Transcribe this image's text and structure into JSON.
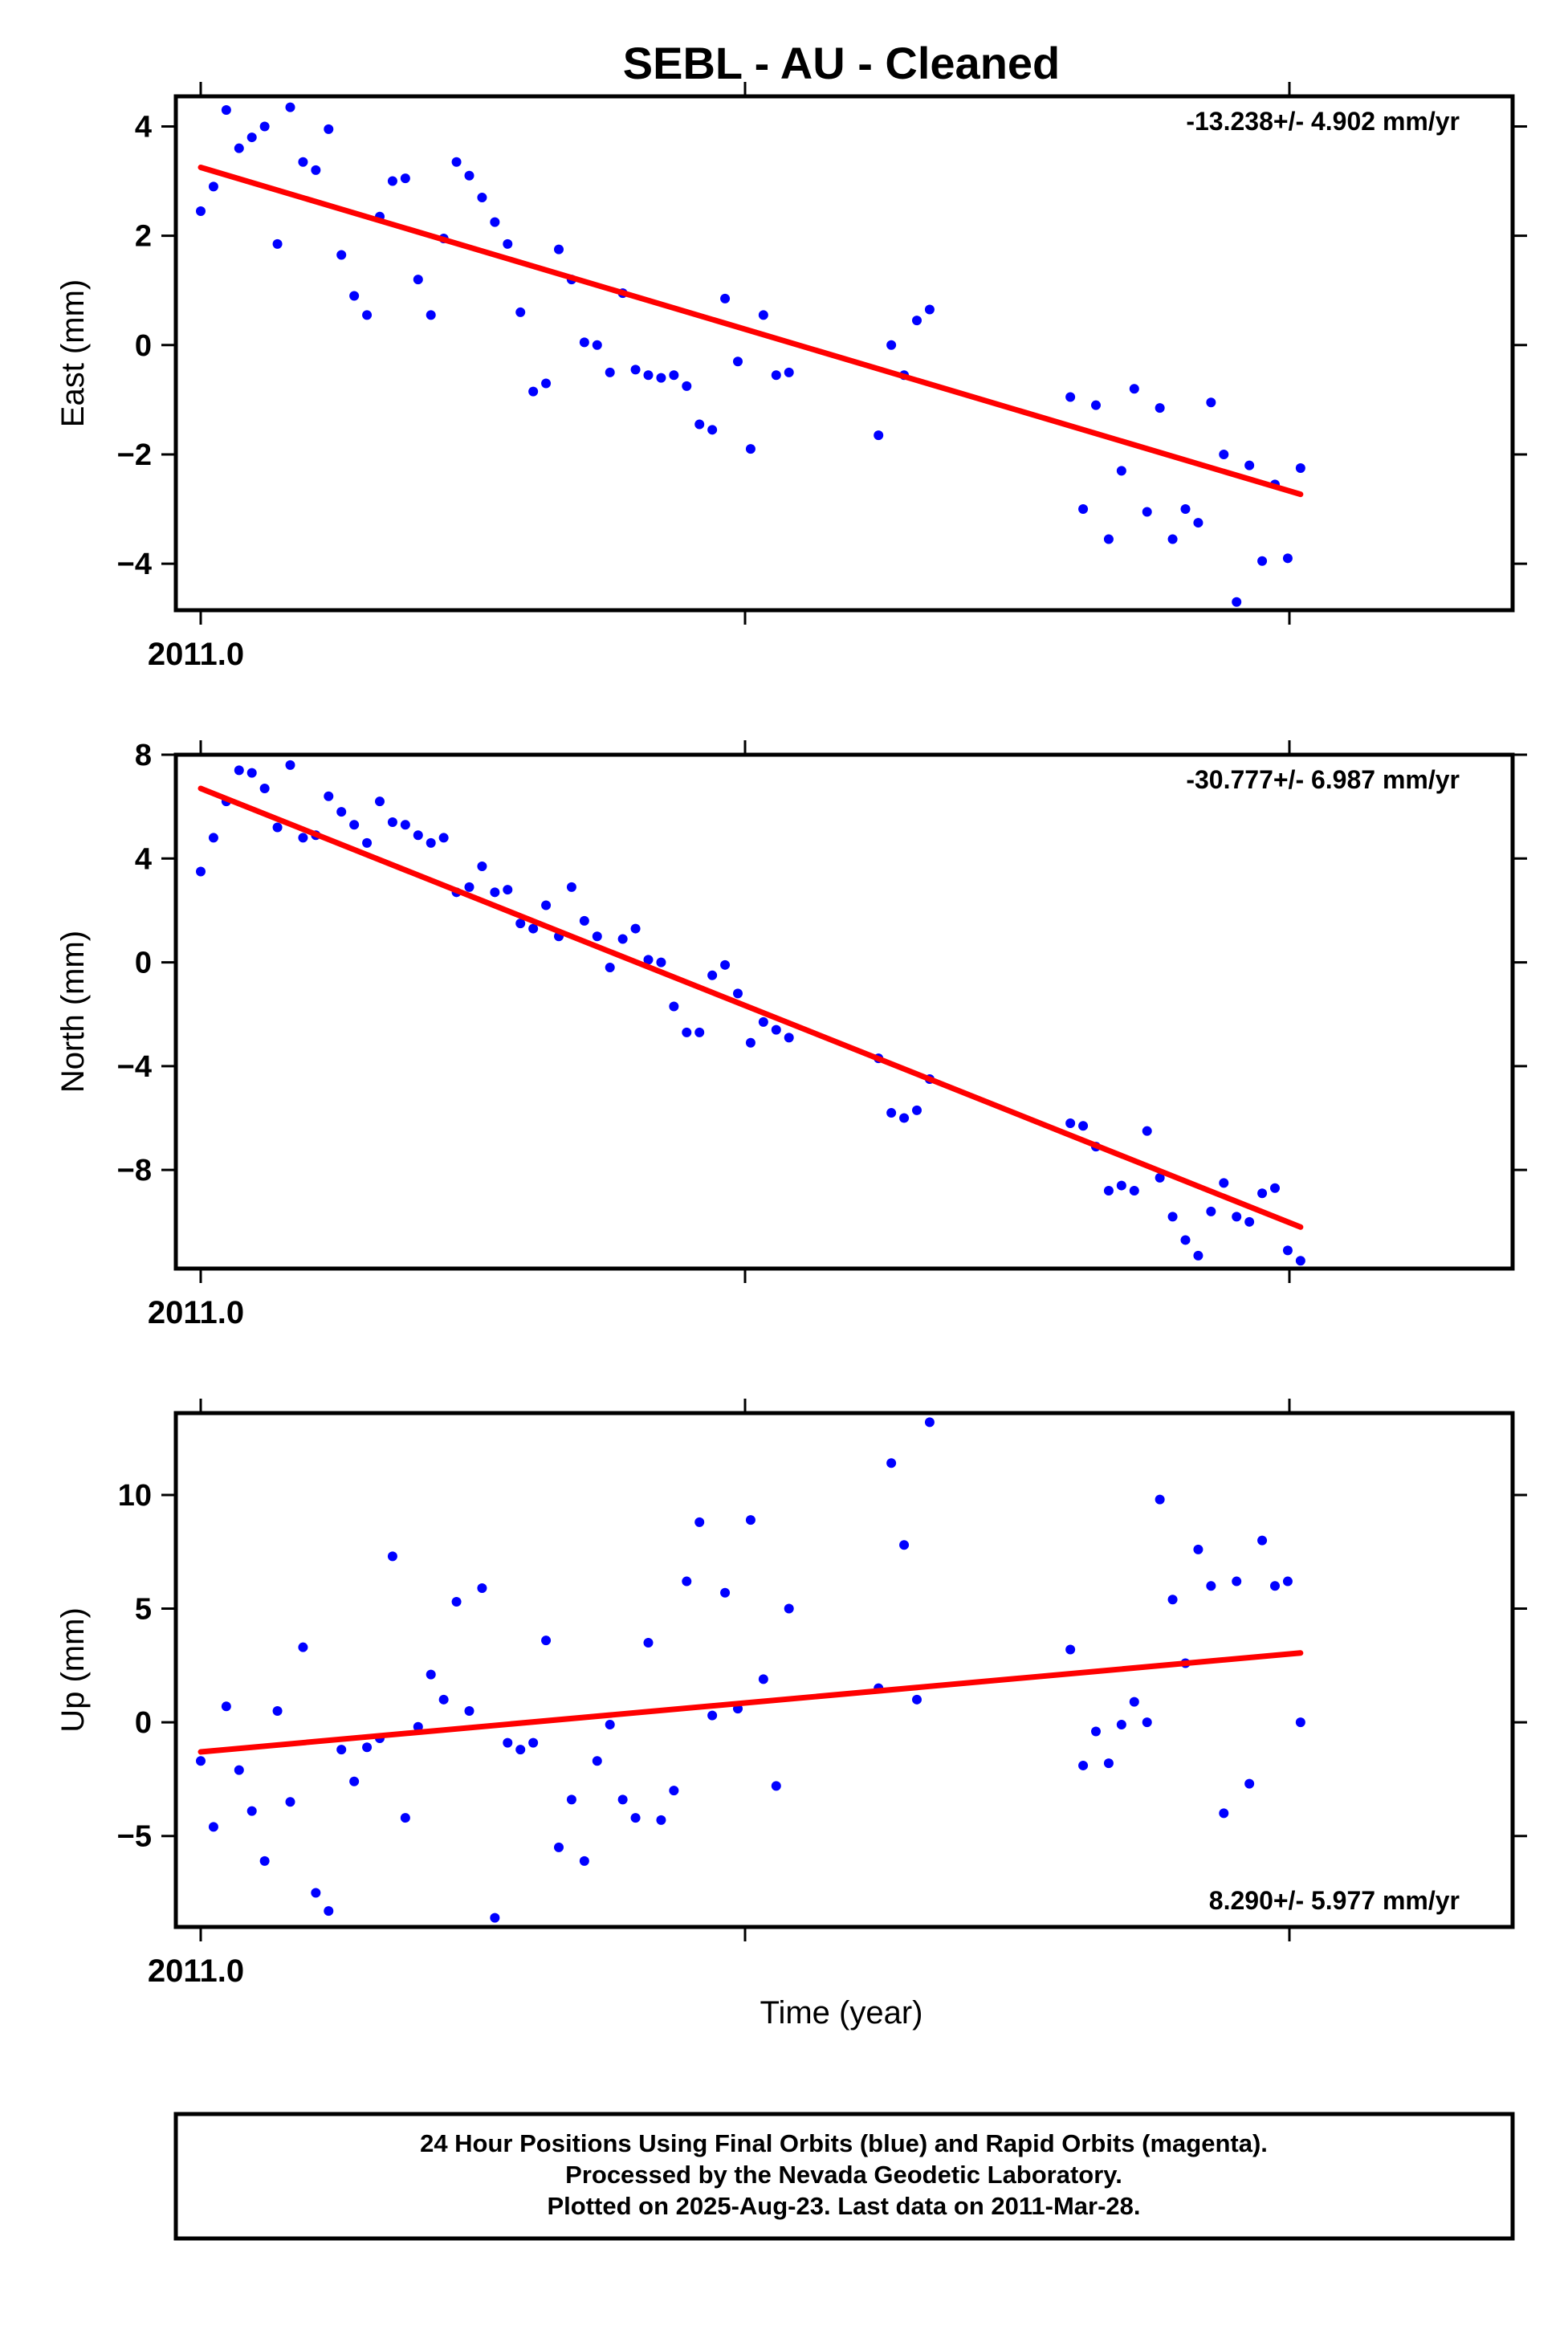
{
  "chart_data": {
    "title": "SEBL  - AU - Cleaned",
    "xlabel": "Time (year)",
    "x_tick_label": "2011.0",
    "x_range": [
      2011.0,
      2011.2369
    ],
    "grid": false,
    "colors": {
      "points": "#0000ff",
      "fit": "#ff0000",
      "frame": "#000000"
    },
    "footer": {
      "line1": "24 Hour Positions Using Final Orbits (blue) and Rapid Orbits (magenta).",
      "line2": "Processed by the Nevada Geodetic Laboratory.",
      "line3": "Plotted on 2025-Aug-23. Last data on 2011-Mar-28."
    },
    "panels": [
      {
        "type": "scatter",
        "ylabel": "East (mm)",
        "velocity": "-13.238+/- 4.902 mm/yr",
        "velocity_position": "top-right",
        "yticks": [
          4,
          2,
          0,
          -2,
          -4
        ],
        "ytick_labels": [
          "4",
          "2",
          "0",
          "−2",
          "−4"
        ],
        "ylim": [
          -4.85,
          4.55
        ],
        "days": [
          0,
          1,
          2,
          3,
          4,
          5,
          6,
          7,
          8,
          9,
          10,
          11,
          12,
          13,
          14,
          15,
          16,
          17,
          18,
          19,
          20,
          21,
          22,
          23,
          24,
          25,
          26,
          27,
          28,
          29,
          30,
          31,
          32,
          33,
          34,
          35,
          36,
          37,
          38,
          39,
          40,
          41,
          42,
          43,
          44,
          45,
          46,
          53,
          54,
          55,
          56,
          57,
          68,
          69,
          70,
          71,
          72,
          73,
          74,
          75,
          76,
          77,
          78,
          79,
          80,
          81,
          82,
          83,
          84,
          85,
          86
        ],
        "values": [
          2.45,
          2.9,
          4.3,
          3.6,
          3.8,
          4.0,
          1.85,
          4.35,
          3.35,
          3.2,
          3.95,
          1.65,
          0.9,
          0.55,
          2.35,
          3.0,
          3.05,
          1.2,
          0.55,
          1.95,
          3.35,
          3.1,
          2.7,
          2.25,
          1.85,
          0.6,
          -0.85,
          -0.7,
          1.75,
          1.2,
          0.05,
          0.0,
          -0.5,
          0.95,
          -0.45,
          -0.55,
          -0.6,
          -0.55,
          -0.75,
          -1.45,
          -1.55,
          0.85,
          -0.3,
          -1.9,
          0.55,
          -0.55,
          -0.5,
          -1.65,
          0.0,
          -0.55,
          0.45,
          0.65,
          -0.95,
          -3.0,
          -1.1,
          -3.55,
          -2.3,
          -0.8,
          -3.05,
          -1.15,
          -3.55,
          -3.0,
          -3.25,
          -1.05,
          -2.0,
          -4.7,
          -2.2,
          -3.95,
          -2.55,
          -3.9,
          -2.25
        ],
        "fit": {
          "days": [
            0,
            86
          ],
          "values": [
            3.25,
            -2.73
          ]
        }
      },
      {
        "type": "scatter",
        "ylabel": "North (mm)",
        "velocity": "-30.777+/- 6.987 mm/yr",
        "velocity_position": "top-right",
        "yticks": [
          8,
          4,
          0,
          -4,
          -8
        ],
        "ytick_labels": [
          "8",
          "4",
          "0",
          "−4",
          "−8"
        ],
        "ylim": [
          -11.8,
          8.0
        ],
        "days": [
          0,
          1,
          2,
          3,
          4,
          5,
          6,
          7,
          8,
          9,
          10,
          11,
          12,
          13,
          14,
          15,
          16,
          17,
          18,
          19,
          20,
          21,
          22,
          23,
          24,
          25,
          26,
          27,
          28,
          29,
          30,
          31,
          32,
          33,
          34,
          35,
          36,
          37,
          38,
          39,
          40,
          41,
          42,
          43,
          44,
          45,
          46,
          53,
          54,
          55,
          56,
          57,
          68,
          69,
          70,
          71,
          72,
          73,
          74,
          75,
          76,
          77,
          78,
          79,
          80,
          81,
          82,
          83,
          84,
          85,
          86
        ],
        "values": [
          3.5,
          4.8,
          6.2,
          7.4,
          7.3,
          6.7,
          5.2,
          7.6,
          4.8,
          4.9,
          6.4,
          5.8,
          5.3,
          4.6,
          6.2,
          5.4,
          5.3,
          4.9,
          4.6,
          4.8,
          2.7,
          2.9,
          3.7,
          2.7,
          2.8,
          1.5,
          1.3,
          2.2,
          1.0,
          2.9,
          1.6,
          1.0,
          -0.2,
          0.9,
          1.3,
          0.1,
          0.0,
          -1.7,
          -2.7,
          -2.7,
          -0.5,
          -0.1,
          -1.2,
          -3.1,
          -2.3,
          -2.6,
          -2.9,
          -3.7,
          -5.8,
          -6.0,
          -5.7,
          -4.5,
          -6.2,
          -6.3,
          -7.1,
          -8.8,
          -8.6,
          -8.8,
          -6.5,
          -8.3,
          -9.8,
          -10.7,
          -11.3,
          -9.6,
          -8.5,
          -9.8,
          -10.0,
          -8.9,
          -8.7,
          -11.1,
          -11.5
        ],
        "fit": {
          "days": [
            0,
            86
          ],
          "values": [
            6.7,
            -10.2
          ]
        }
      },
      {
        "type": "scatter",
        "ylabel": "Up (mm)",
        "velocity": "8.290+/- 5.977 mm/yr",
        "velocity_position": "bottom-right",
        "yticks": [
          10,
          5,
          0,
          -5
        ],
        "ytick_labels": [
          "10",
          "5",
          "0",
          "−5"
        ],
        "ylim": [
          -9.0,
          13.6
        ],
        "days": [
          0,
          1,
          2,
          3,
          4,
          5,
          6,
          7,
          8,
          9,
          10,
          11,
          12,
          13,
          14,
          15,
          16,
          17,
          18,
          19,
          20,
          21,
          22,
          23,
          24,
          25,
          26,
          27,
          28,
          29,
          30,
          31,
          32,
          33,
          34,
          35,
          36,
          37,
          38,
          39,
          40,
          41,
          42,
          43,
          44,
          45,
          46,
          53,
          54,
          55,
          56,
          57,
          68,
          69,
          70,
          71,
          72,
          73,
          74,
          75,
          76,
          77,
          78,
          79,
          80,
          81,
          82,
          83,
          84,
          85,
          86
        ],
        "values": [
          -1.7,
          -4.6,
          0.7,
          -2.1,
          -3.9,
          -6.1,
          0.5,
          -3.5,
          3.3,
          -7.5,
          -8.3,
          -1.2,
          -2.6,
          -1.1,
          -0.7,
          7.3,
          -4.2,
          -0.2,
          2.1,
          1.0,
          5.3,
          0.5,
          5.9,
          -8.6,
          -0.9,
          -1.2,
          -0.9,
          3.6,
          -5.5,
          -3.4,
          -6.1,
          -1.7,
          -0.1,
          -3.4,
          -4.2,
          3.5,
          -4.3,
          -3.0,
          6.2,
          8.8,
          0.3,
          5.7,
          0.6,
          8.9,
          1.9,
          -2.8,
          5.0,
          1.5,
          11.4,
          7.8,
          1.0,
          13.2,
          3.2,
          -1.9,
          -0.4,
          -1.8,
          -0.1,
          0.9,
          0.0,
          9.8,
          5.4,
          2.6,
          7.6,
          6.0,
          -4.0,
          6.2,
          -2.7,
          8.0,
          6.0,
          6.2,
          0.0
        ],
        "fit": {
          "days": [
            0,
            86
          ],
          "values": [
            -1.3,
            3.05
          ]
        }
      }
    ]
  }
}
